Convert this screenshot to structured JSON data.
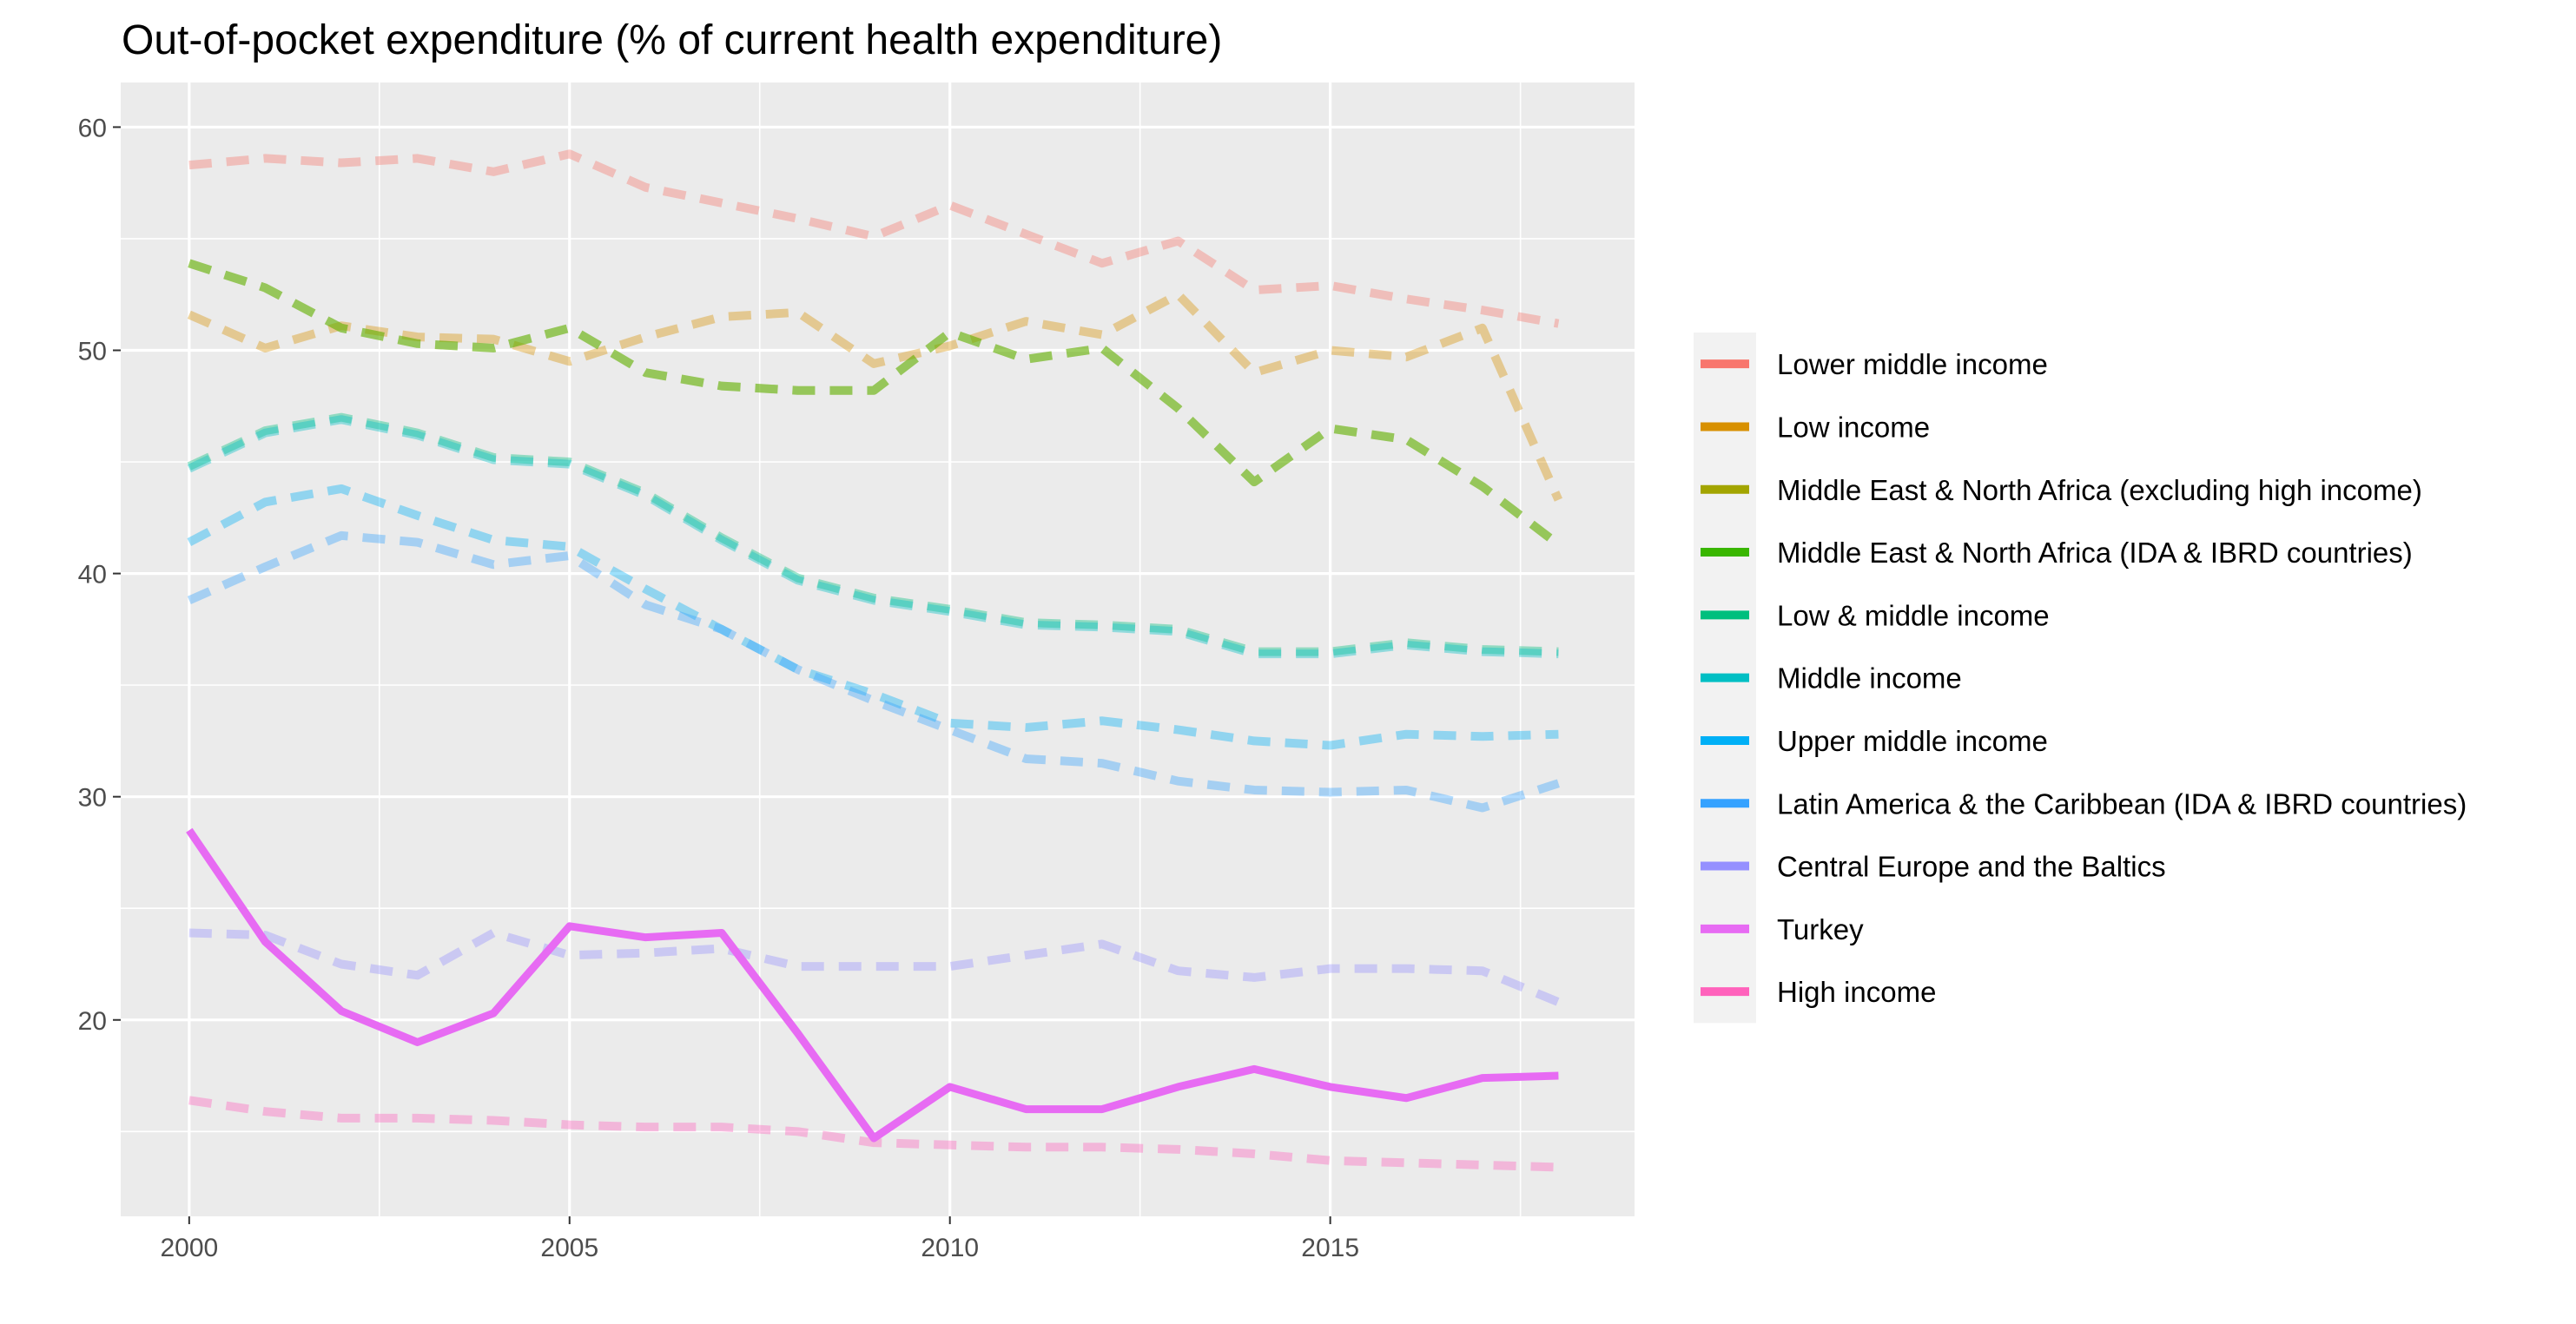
{
  "chart_data": {
    "type": "line",
    "title": "Out-of-pocket expenditure (% of current health expenditure)",
    "xlabel": "",
    "ylabel": "",
    "xlim": [
      1999.1,
      2019.0
    ],
    "ylim": [
      11.2,
      62.0
    ],
    "x_ticks": [
      2000,
      2005,
      2010,
      2015
    ],
    "y_ticks": [
      20,
      30,
      40,
      50,
      60
    ],
    "grid": true,
    "legend_position": "right",
    "x": [
      2000,
      2001,
      2002,
      2003,
      2004,
      2005,
      2006,
      2007,
      2008,
      2009,
      2010,
      2011,
      2012,
      2013,
      2014,
      2015,
      2016,
      2017,
      2018
    ],
    "series": [
      {
        "name": "Lower middle income",
        "color": "#F8766D",
        "style": "dashed",
        "highlight": false,
        "values": [
          58.3,
          58.6,
          58.4,
          58.6,
          58.0,
          58.8,
          57.3,
          56.6,
          55.9,
          55.1,
          56.5,
          55.2,
          53.9,
          54.9,
          52.7,
          52.9,
          52.3,
          51.8,
          51.2
        ]
      },
      {
        "name": "Low income",
        "color": "#D89000",
        "style": "dashed",
        "highlight": false,
        "values": [
          51.6,
          50.1,
          51.1,
          50.6,
          50.5,
          49.5,
          50.6,
          51.5,
          51.7,
          49.4,
          50.2,
          51.3,
          50.7,
          52.5,
          49.0,
          50.0,
          49.7,
          51.0,
          43.3
        ]
      },
      {
        "name": "Middle East & North Africa (excluding high income)",
        "color": "#A3A500",
        "style": "dashed",
        "highlight": false,
        "values": [
          53.9,
          52.8,
          51.0,
          50.3,
          50.1,
          51.0,
          49.0,
          48.4,
          48.2,
          48.2,
          50.8,
          49.6,
          50.1,
          47.4,
          44.1,
          46.5,
          46.0,
          43.9,
          41.3
        ]
      },
      {
        "name": "Middle East & North Africa (IDA & IBRD countries)",
        "color": "#39B600",
        "style": "dashed",
        "highlight": false,
        "values": [
          53.9,
          52.8,
          51.0,
          50.3,
          50.1,
          51.0,
          49.0,
          48.4,
          48.2,
          48.2,
          50.8,
          49.6,
          50.1,
          47.4,
          44.1,
          46.5,
          46.0,
          43.9,
          41.3
        ]
      },
      {
        "name": "Low & middle income",
        "color": "#00BF7D",
        "style": "dashed",
        "highlight": false,
        "values": [
          44.8,
          46.4,
          47.0,
          46.3,
          45.2,
          45.0,
          43.6,
          41.6,
          39.8,
          38.9,
          38.4,
          37.8,
          37.7,
          37.5,
          36.5,
          36.5,
          36.9,
          36.6,
          36.5
        ]
      },
      {
        "name": "Middle income",
        "color": "#00BFC4",
        "style": "dashed",
        "highlight": false,
        "values": [
          44.7,
          46.3,
          46.9,
          46.2,
          45.1,
          44.9,
          43.5,
          41.5,
          39.7,
          38.8,
          38.3,
          37.7,
          37.6,
          37.4,
          36.4,
          36.4,
          36.8,
          36.5,
          36.4
        ]
      },
      {
        "name": "Upper middle income",
        "color": "#00B0F6",
        "style": "dashed",
        "highlight": false,
        "values": [
          41.4,
          43.2,
          43.8,
          42.6,
          41.5,
          41.2,
          39.3,
          37.5,
          35.7,
          34.6,
          33.3,
          33.1,
          33.4,
          33.0,
          32.5,
          32.3,
          32.8,
          32.7,
          32.8
        ]
      },
      {
        "name": "Latin America & the Caribbean (IDA & IBRD countries)",
        "color": "#35A2FF",
        "style": "dashed",
        "highlight": false,
        "values": [
          38.8,
          40.3,
          41.7,
          41.4,
          40.4,
          40.8,
          38.6,
          37.5,
          35.7,
          34.3,
          33.0,
          31.7,
          31.5,
          30.7,
          30.3,
          30.2,
          30.3,
          29.5,
          30.6
        ]
      },
      {
        "name": "Central Europe and the Baltics",
        "color": "#9590FF",
        "style": "dashed",
        "highlight": false,
        "values": [
          23.9,
          23.8,
          22.5,
          22.0,
          23.9,
          22.9,
          23.0,
          23.2,
          22.4,
          22.4,
          22.4,
          22.9,
          23.4,
          22.2,
          21.9,
          22.3,
          22.3,
          22.2,
          20.8
        ]
      },
      {
        "name": "Turkey",
        "color": "#E76BF3",
        "style": "solid",
        "highlight": true,
        "values": [
          28.5,
          23.5,
          20.4,
          19.0,
          20.3,
          24.2,
          23.7,
          23.9,
          19.4,
          14.7,
          17.0,
          16.0,
          16.0,
          17.0,
          17.8,
          17.0,
          16.5,
          17.4,
          17.5
        ]
      },
      {
        "name": "High income",
        "color": "#FF62BC",
        "style": "dashed",
        "highlight": false,
        "values": [
          16.4,
          15.9,
          15.6,
          15.6,
          15.5,
          15.3,
          15.2,
          15.2,
          15.0,
          14.5,
          14.4,
          14.3,
          14.3,
          14.2,
          14.0,
          13.7,
          13.6,
          13.5,
          13.4
        ]
      }
    ]
  }
}
